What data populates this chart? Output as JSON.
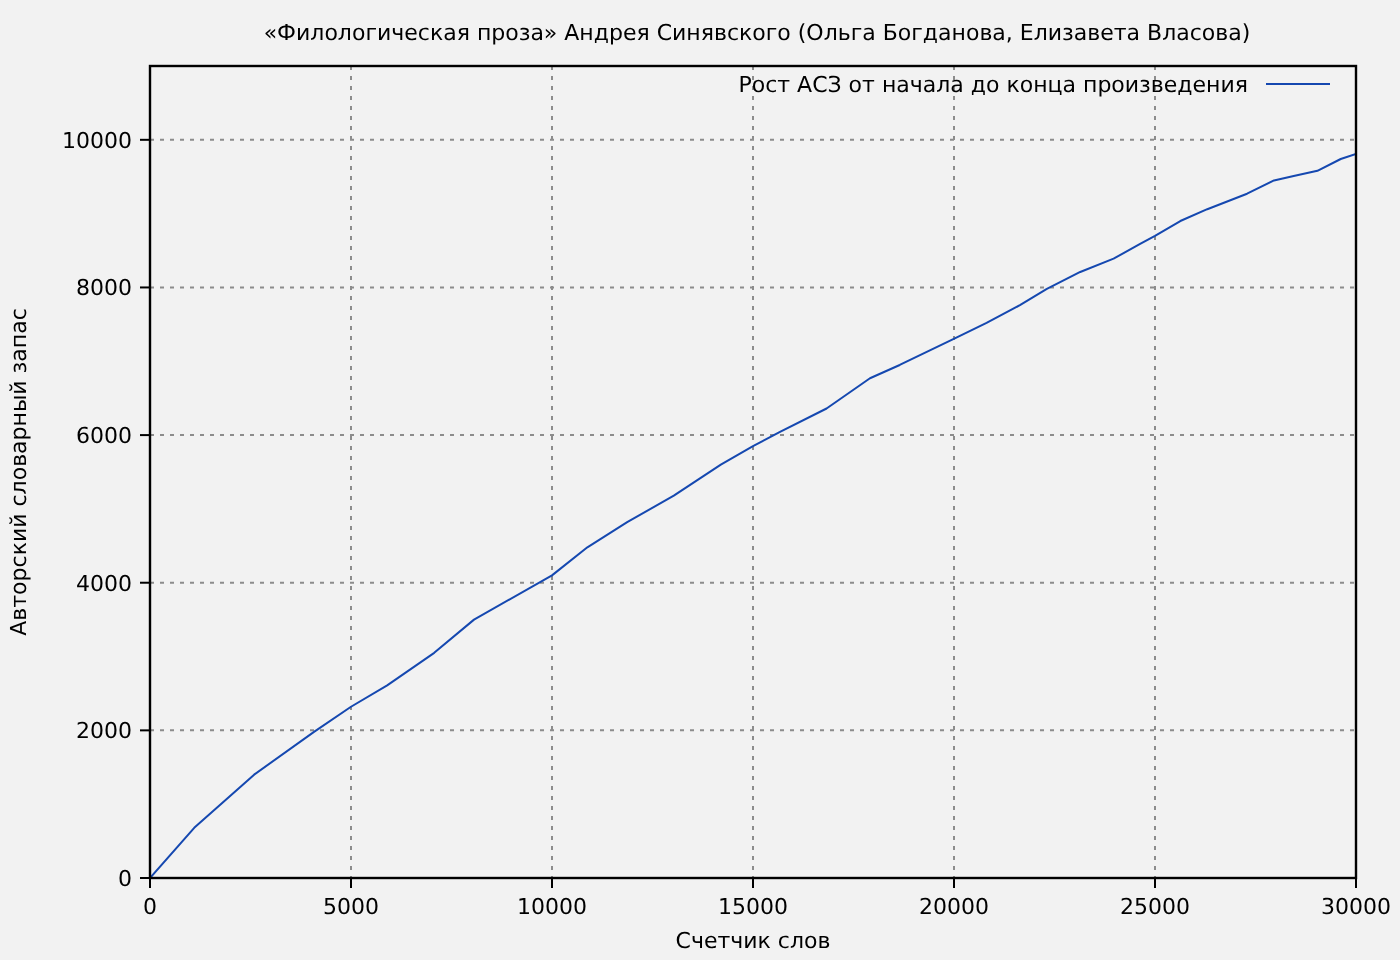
{
  "chart_data": {
    "type": "line",
    "title": "«Филологическая проза» Андрея Синявского (Ольга Богданова, Елизавета Власова)",
    "xlabel": "Счетчик слов",
    "ylabel": "Авторский словарный запас",
    "x": [
      0,
      1100,
      2590,
      4080,
      5000,
      5900,
      7070,
      8060,
      10000,
      10880,
      11870,
      13030,
      14200,
      15000,
      15660,
      16830,
      17910,
      18650,
      20020,
      20810,
      21640,
      22310,
      23140,
      23970,
      24630,
      25000,
      25630,
      26300,
      27290,
      27960,
      28450,
      29040,
      29620,
      30000
    ],
    "series": [
      {
        "name": "Рост АСЗ от начала до конца произведения",
        "color": "#1548b0",
        "values": [
          0,
          680,
          1400,
          1980,
          2320,
          2610,
          3050,
          3500,
          4100,
          4480,
          4820,
          5180,
          5600,
          5850,
          6040,
          6360,
          6770,
          6950,
          7310,
          7520,
          7760,
          7980,
          8210,
          8390,
          8590,
          8700,
          8900,
          9060,
          9270,
          9450,
          9510,
          9580,
          9740,
          9810
        ]
      }
    ],
    "xlim": [
      0,
      30000
    ],
    "ylim": [
      0,
      11000
    ],
    "xticks": [
      0,
      5000,
      10000,
      15000,
      20000,
      25000,
      30000
    ],
    "yticks": [
      0,
      2000,
      4000,
      6000,
      8000,
      10000
    ],
    "grid": true,
    "legend": "top right"
  }
}
